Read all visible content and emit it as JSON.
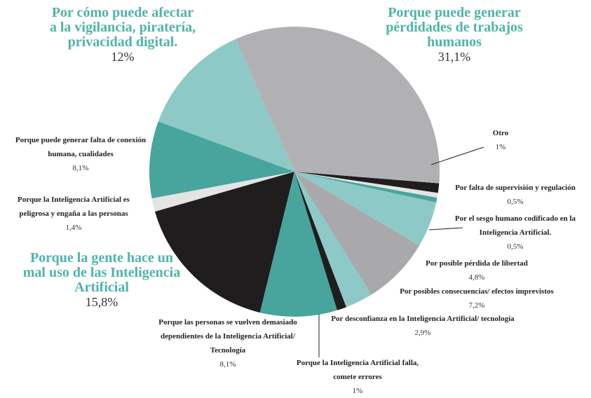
{
  "chart_data": {
    "type": "pie",
    "categories": [
      "Porque puede generar pérdidades de trabajos humanos",
      "Otro",
      "Por falta de supervisión y regulación",
      "Por el sesgo humano codificado en la Inteligencia Artificial.",
      "Por posible pérdida de libertad",
      "Por posibles consecuencias/ efectos imprevistos",
      "Por desconfianza en la Inteligencia Artificial/ tecnología",
      "Porque la Inteligencia Artificial falla, comete errores",
      "Porque las personas se vuelven demasiado dependientes de la Inteligencia Artificial/ Tecnología",
      "Porque la gente hace un mal uso de las Inteligencia Artificial",
      "Porque la Inteligencia Artificial es peligrosa y engaña a las personas",
      "Porque puede generar falta de conexión humana, cualidades",
      "Por cómo puede afectar a la vigilancia, piratería, privacidad digital."
    ],
    "values": [
      31.1,
      1,
      0.5,
      0.5,
      4.8,
      7.2,
      2.9,
      1,
      8.1,
      15.8,
      1.4,
      8.1,
      12
    ],
    "value_labels": [
      "31,1%",
      "1%",
      "0,5%",
      "0,5%",
      "4,8%",
      "7,2%",
      "2,9%",
      "1%",
      "8,1%",
      "15,8%",
      "1,4%",
      "8,1%",
      "12%"
    ],
    "colors": [
      "#b1b1b3",
      "#1f1d1e",
      "#e4e4e5",
      "#47a59e",
      "#8dc9c7",
      "#a9a9ab",
      "#8dc9c7",
      "#1f1d1e",
      "#47a59e",
      "#1f1d1e",
      "#e4e4e5",
      "#47a59e",
      "#8dc9c7"
    ]
  }
}
